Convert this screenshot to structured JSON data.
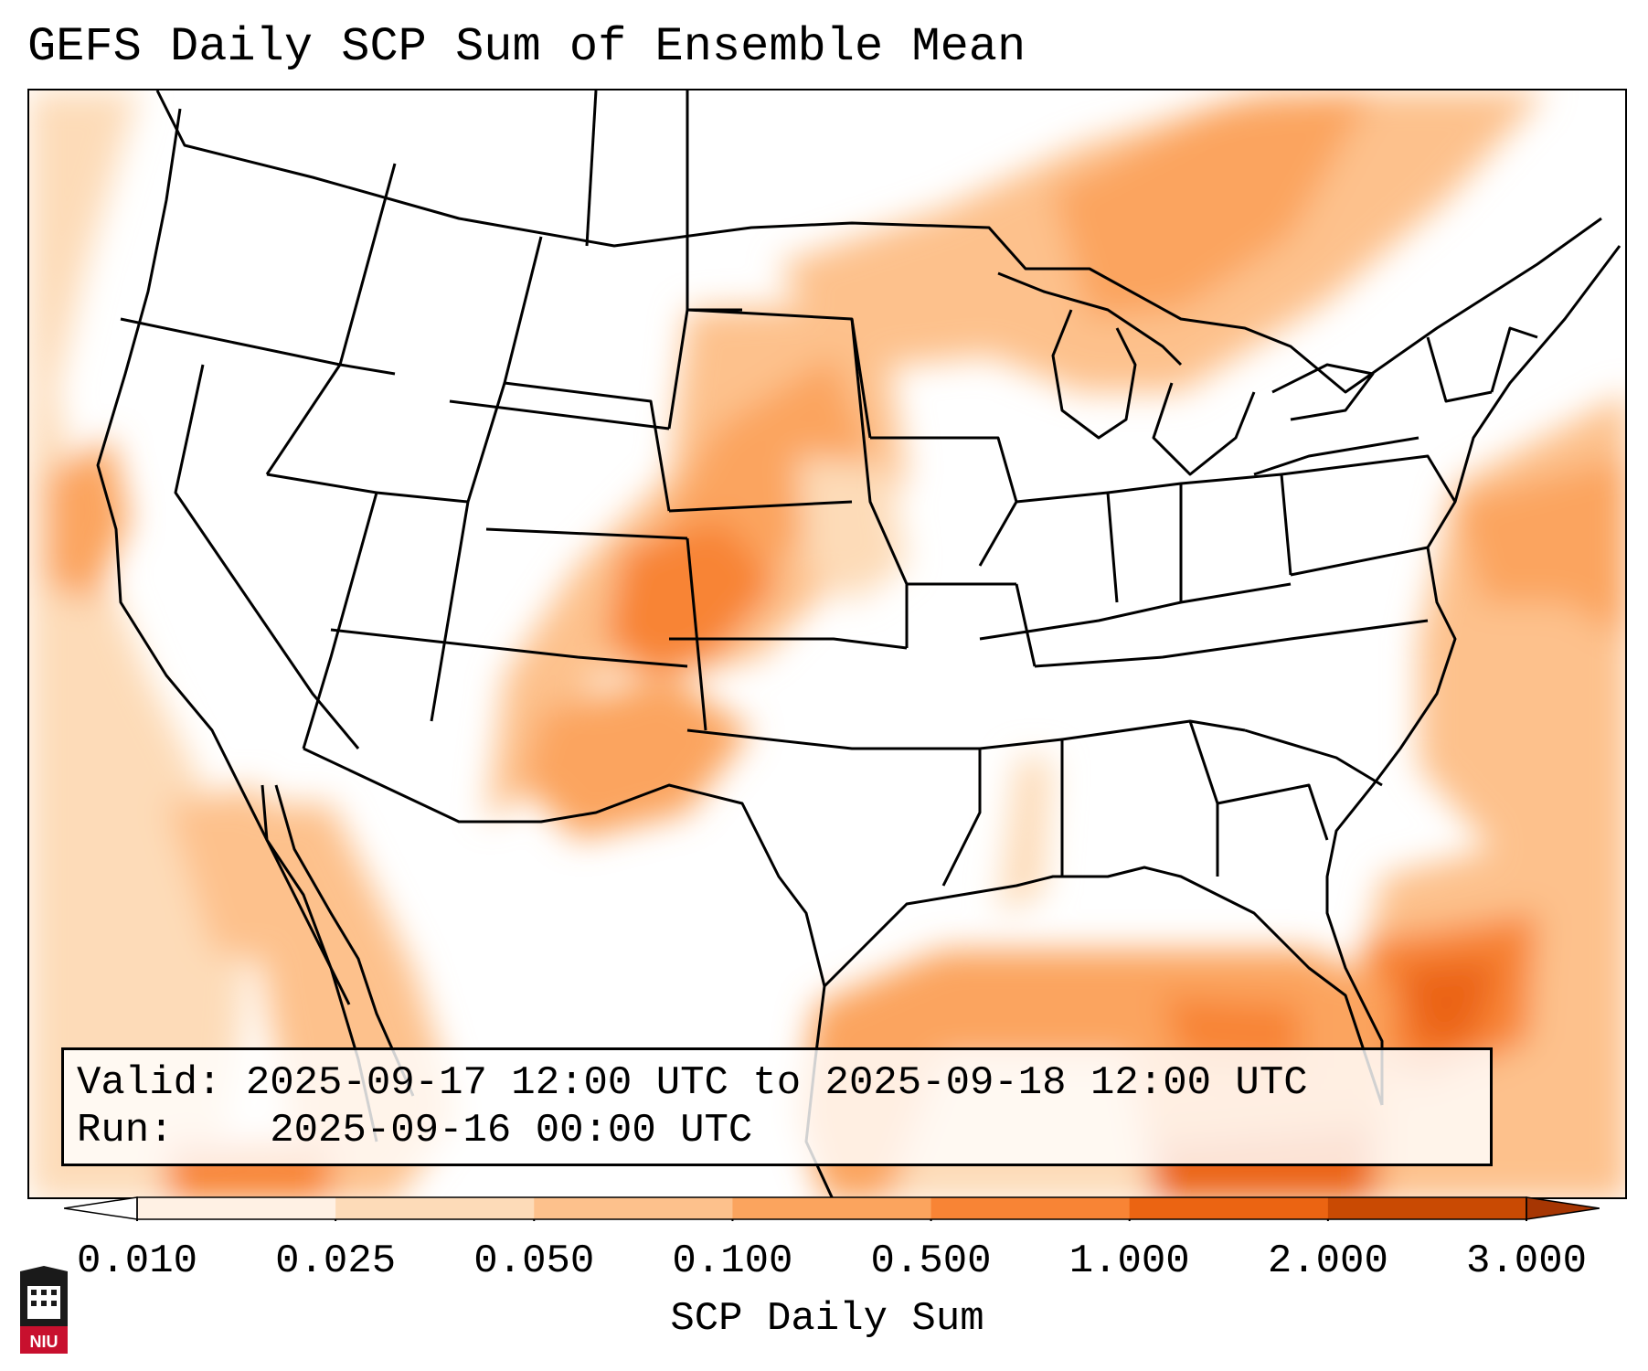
{
  "title": "GEFS Daily SCP Sum of Ensemble Mean",
  "info": {
    "valid_label": "Valid:",
    "valid_value": "2025-09-17 12:00 UTC to 2025-09-18 12:00 UTC",
    "run_label": "Run:",
    "run_value": "2025-09-16 00:00 UTC"
  },
  "colorbar": {
    "label": "SCP Daily Sum",
    "ticks": [
      "0.010",
      "0.025",
      "0.050",
      "0.100",
      "0.500",
      "1.000",
      "2.000",
      "3.000"
    ],
    "colors": [
      "#fff1e4",
      "#fddbb8",
      "#fdc18c",
      "#fba45e",
      "#f88435",
      "#eb6412",
      "#c94a03"
    ],
    "under_color": "#ffffff",
    "over_color": "#a63603"
  },
  "logo": {
    "text": "NIU"
  }
}
